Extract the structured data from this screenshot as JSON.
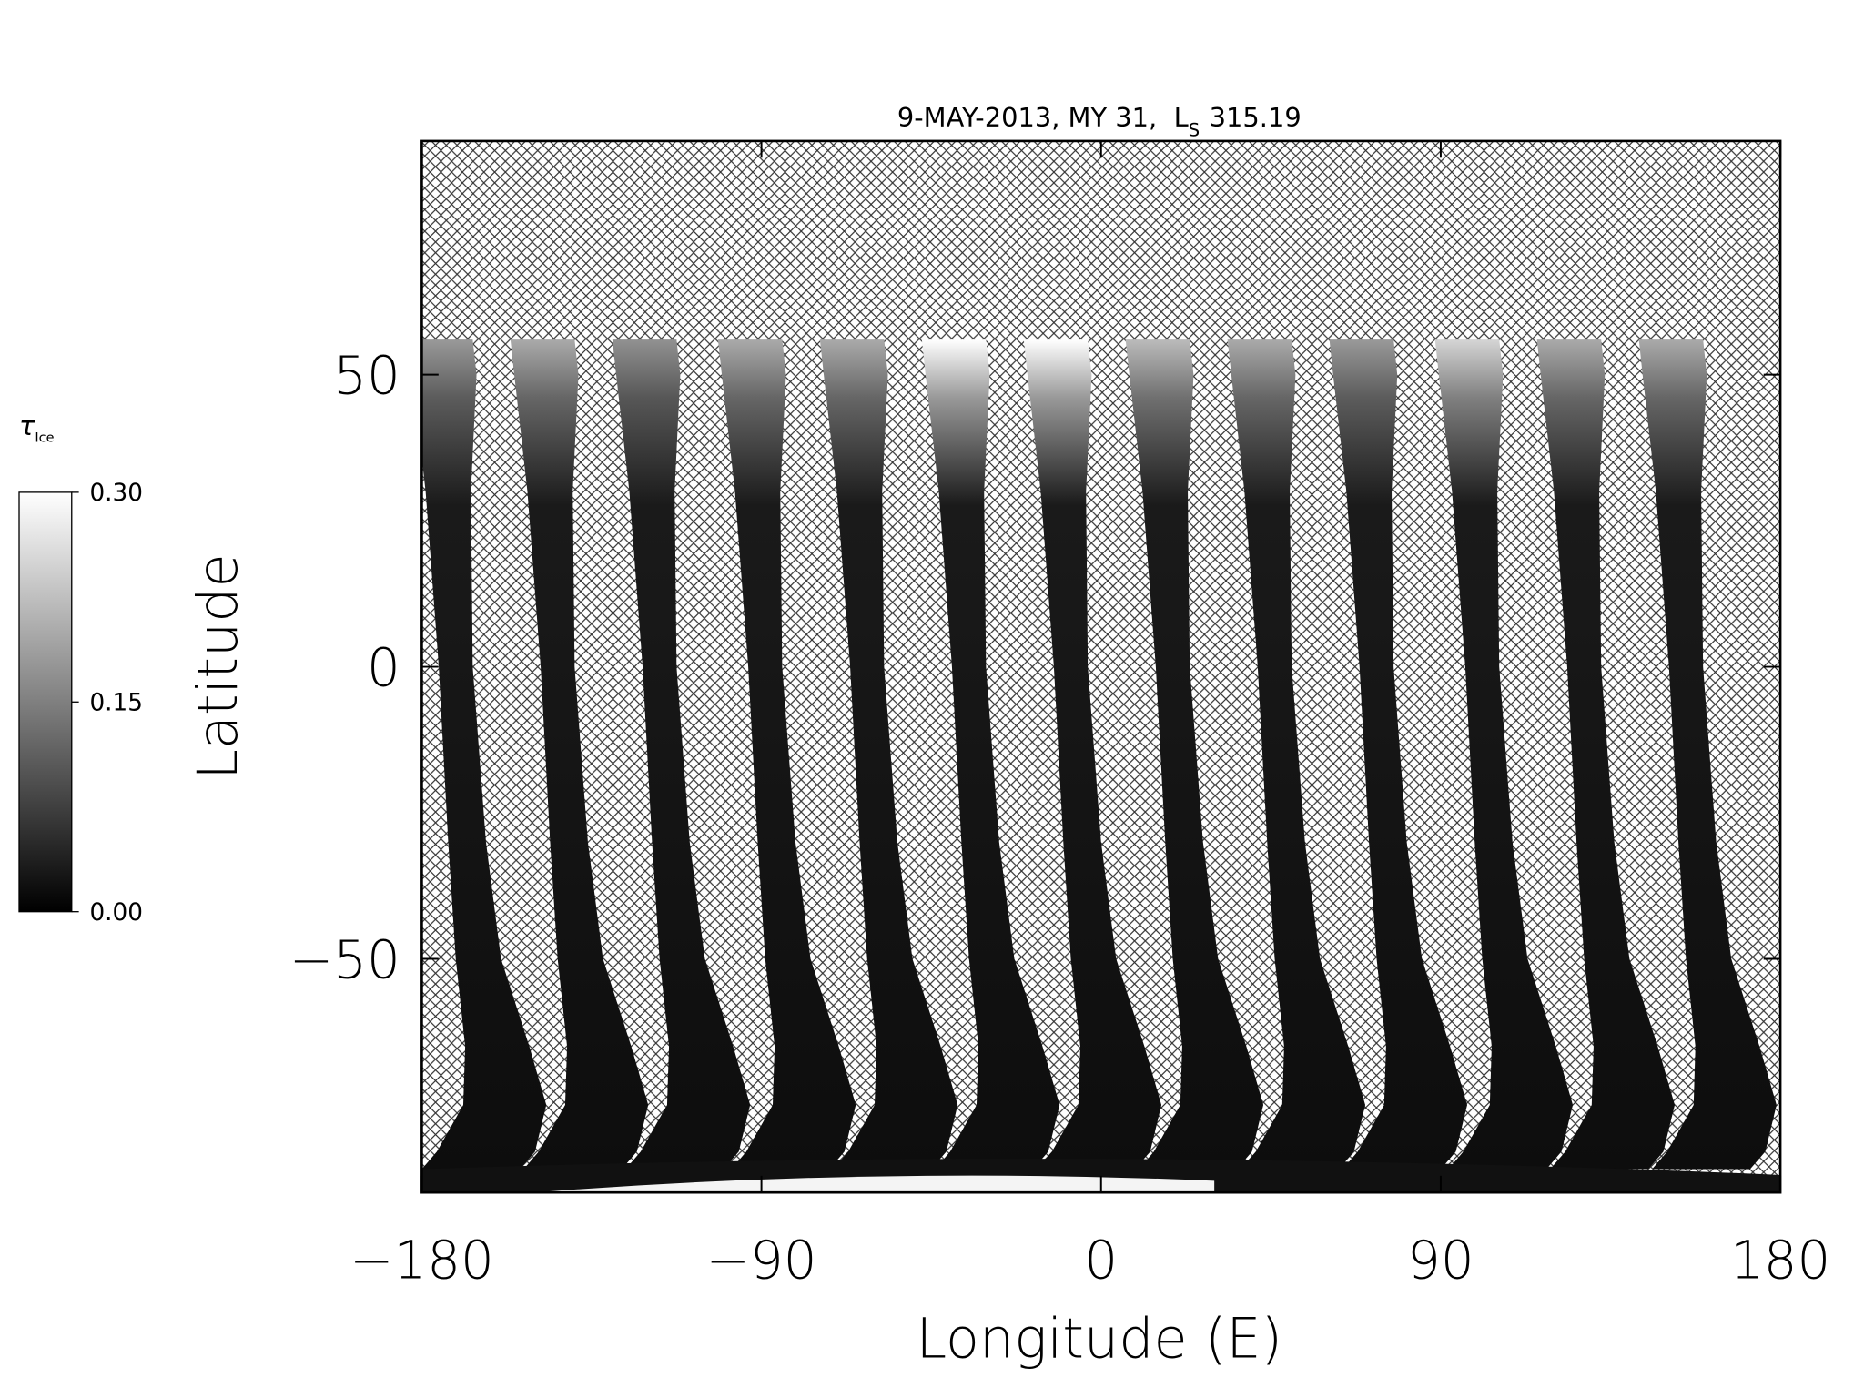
{
  "chart_data": {
    "type": "swath-map",
    "title": {
      "text": "9-MAY-2013, MY 31,",
      "ls_symbol": "L",
      "ls_subscript": "S",
      "ls_value": "315.19"
    },
    "x_label": "Longitude (E)",
    "y_label": "Latitude",
    "xlim": [
      -180,
      180
    ],
    "ylim": [
      -90,
      90
    ],
    "xticks": [
      {
        "value": -180,
        "label": "−180"
      },
      {
        "value": -90,
        "label": "−90"
      },
      0,
      90,
      180
    ],
    "yticks": [
      {
        "value": -50,
        "label": "−50"
      },
      0,
      50
    ],
    "swaths": {
      "equator_lon": [
        -171,
        -144,
        -117,
        -89,
        -62,
        -35,
        -8,
        19,
        46,
        73,
        101,
        128,
        155
      ],
      "peak_tau": [
        0.18,
        0.2,
        0.17,
        0.2,
        0.2,
        0.3,
        0.3,
        0.22,
        0.2,
        0.18,
        0.25,
        0.2,
        0.2
      ]
    },
    "colorbar": {
      "label": "τ",
      "label_sub": "Ice",
      "lim": [
        0,
        0.3
      ],
      "ticks": [
        {
          "value": 0,
          "label": "0.00"
        },
        {
          "value": 0.15,
          "label": "0.15"
        },
        {
          "value": 0.3,
          "label": "0.30"
        }
      ]
    }
  }
}
